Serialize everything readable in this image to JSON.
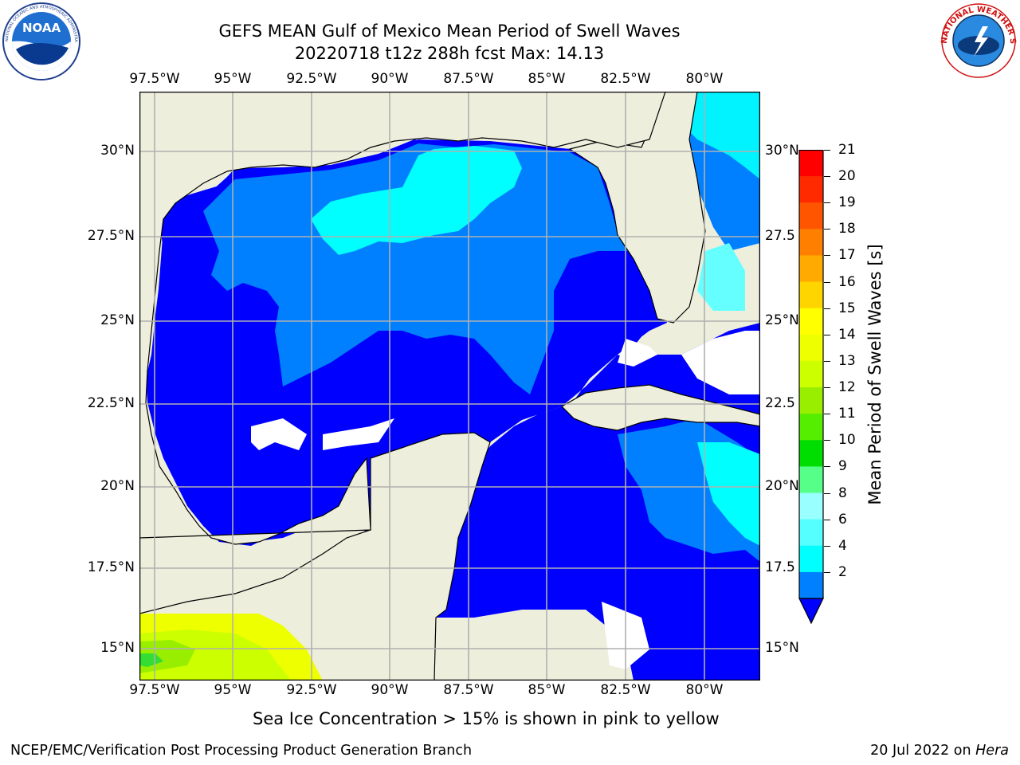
{
  "title_line1": "GEFS MEAN Gulf of Mexico Mean Period of Swell Waves",
  "title_line2": "20220718 t12z 288h fcst   Max: 14.13",
  "map": {
    "lon_labels": [
      "97.5°W",
      "95°W",
      "92.5°W",
      "90°W",
      "87.5°W",
      "85°W",
      "82.5°W",
      "80°W"
    ],
    "lat_labels_left": [
      "30°N",
      "27.5°N",
      "25°N",
      "22.5°N",
      "20°N",
      "17.5°N",
      "15°N"
    ],
    "lat_labels_right": [
      "30°N",
      "27.5",
      "25°N",
      "22.5",
      "20°N",
      "17.5",
      "15°N"
    ],
    "colors": {
      "land": "#eeeedd",
      "grid": "#b0b0b0",
      "c2": "#0000ff",
      "c4": "#0080ff",
      "c6": "#00ffff",
      "c8": "#66ffff",
      "c13": "#ccff00",
      "c14": "#eeff00",
      "c12": "#99ee00",
      "c10": "#33dd33"
    }
  },
  "colorbar": {
    "label": "Mean Period of Swell Waves [s]",
    "ticks": [
      "21",
      "20",
      "19",
      "18",
      "17",
      "16",
      "15",
      "14",
      "13",
      "12",
      "11",
      "10",
      "9",
      "8",
      "6",
      "4",
      "2"
    ],
    "colors": [
      "#ff0000",
      "#ff2a00",
      "#ff5500",
      "#ff8000",
      "#ffaa00",
      "#ffd500",
      "#ffff00",
      "#eeff00",
      "#ccff00",
      "#99ee00",
      "#55ee00",
      "#00dd00",
      "#55ff88",
      "#99ffff",
      "#55ffff",
      "#00ffff",
      "#0080ff"
    ],
    "extend_color": "#0000ff"
  },
  "note": "Sea Ice Concentration > 15% is shown in pink to yellow",
  "footer_left": "NCEP/EMC/Verification Post Processing Product Generation Branch",
  "footer_right_date": "20 Jul 2022 on ",
  "footer_right_host": "Hera",
  "logos": {
    "noaa": {
      "text": "NOAA",
      "ring": "NATIONAL OCEANIC AND ATMOSPHERIC ADMINISTRATION"
    },
    "nws": {
      "ring": "NATIONAL WEATHER SERVICE"
    }
  }
}
